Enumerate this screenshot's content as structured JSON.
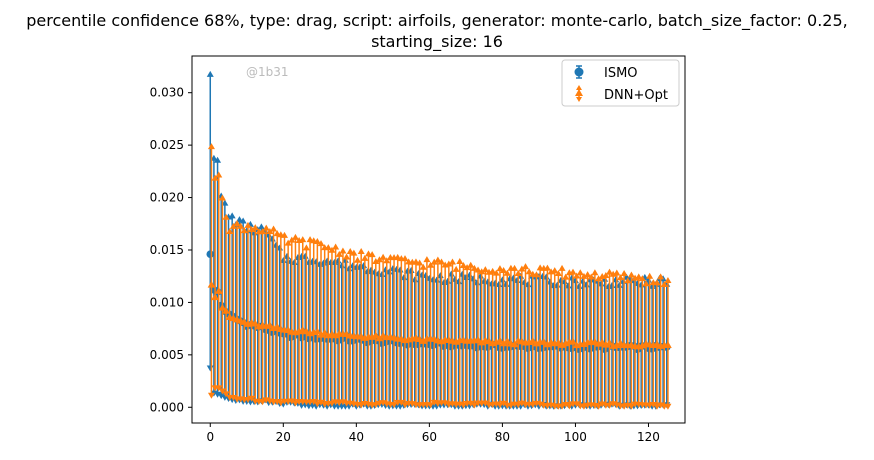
{
  "chart_data": {
    "type": "scatter",
    "title_line1": "percentile confidence 68%, type: drag, script: airfoils, generator: monte-carlo, batch_size_factor: 0.25,",
    "title_line2": "starting_size: 16",
    "watermark": "@1b31",
    "xlim": [
      -5,
      130
    ],
    "ylim": [
      -0.0015,
      0.0335
    ],
    "xticks": [
      0,
      20,
      40,
      60,
      80,
      100,
      120
    ],
    "yticks": [
      0.0,
      0.005,
      0.01,
      0.015,
      0.02,
      0.025,
      0.03
    ],
    "ytick_labels": [
      "0.000",
      "0.005",
      "0.010",
      "0.015",
      "0.020",
      "0.025",
      "0.030"
    ],
    "legend": {
      "position": "top-right",
      "entries": [
        "ISMO",
        "DNN+Opt"
      ]
    },
    "x": {
      "start": 0,
      "end": 125,
      "step": 1
    },
    "series": [
      {
        "name": "ISMO",
        "color": "#1f77b4",
        "marker": "circle",
        "mean_anchors": [
          [
            0,
            0.0146
          ],
          [
            1,
            0.0112
          ],
          [
            2,
            0.011
          ],
          [
            3,
            0.0097
          ],
          [
            5,
            0.0088
          ],
          [
            10,
            0.0079
          ],
          [
            15,
            0.0075
          ],
          [
            20,
            0.0069
          ],
          [
            30,
            0.0066
          ],
          [
            40,
            0.0064
          ],
          [
            50,
            0.0062
          ],
          [
            60,
            0.006
          ],
          [
            80,
            0.0058
          ],
          [
            100,
            0.0057
          ],
          [
            125,
            0.0057
          ]
        ],
        "upper_anchors": [
          [
            0,
            0.0318
          ],
          [
            1,
            0.0238
          ],
          [
            2,
            0.0236
          ],
          [
            3,
            0.0202
          ],
          [
            5,
            0.0183
          ],
          [
            10,
            0.0172
          ],
          [
            15,
            0.0168
          ],
          [
            20,
            0.0143
          ],
          [
            30,
            0.0141
          ],
          [
            40,
            0.0135
          ],
          [
            50,
            0.013
          ],
          [
            60,
            0.0124
          ],
          [
            80,
            0.0122
          ],
          [
            100,
            0.012
          ],
          [
            125,
            0.012
          ]
        ],
        "lower_anchors": [
          [
            0,
            0.0037
          ],
          [
            1,
            0.0013
          ],
          [
            2,
            0.0012
          ],
          [
            5,
            0.0008
          ],
          [
            10,
            0.0006
          ],
          [
            20,
            0.0004
          ],
          [
            30,
            0.0001
          ],
          [
            40,
            0.0001
          ],
          [
            60,
            0.0001
          ],
          [
            125,
            0.0001
          ]
        ]
      },
      {
        "name": "DNN+Opt",
        "color": "#ff7f0e",
        "marker": "triangle",
        "mean_anchors": [
          [
            0,
            0.0117
          ],
          [
            1,
            0.0105
          ],
          [
            2,
            0.0111
          ],
          [
            3,
            0.0095
          ],
          [
            5,
            0.0086
          ],
          [
            10,
            0.008
          ],
          [
            15,
            0.0077
          ],
          [
            20,
            0.0074
          ],
          [
            30,
            0.0071
          ],
          [
            40,
            0.0068
          ],
          [
            50,
            0.0066
          ],
          [
            60,
            0.0064
          ],
          [
            80,
            0.0062
          ],
          [
            100,
            0.0061
          ],
          [
            125,
            0.0059
          ]
        ],
        "upper_anchors": [
          [
            0,
            0.0249
          ],
          [
            1,
            0.0219
          ],
          [
            2,
            0.0222
          ],
          [
            3,
            0.02
          ],
          [
            5,
            0.0172
          ],
          [
            10,
            0.0173
          ],
          [
            15,
            0.017
          ],
          [
            20,
            0.016
          ],
          [
            30,
            0.0155
          ],
          [
            40,
            0.0145
          ],
          [
            50,
            0.014
          ],
          [
            60,
            0.0138
          ],
          [
            80,
            0.0132
          ],
          [
            100,
            0.0128
          ],
          [
            125,
            0.0121
          ]
        ],
        "lower_anchors": [
          [
            0,
            0.0011
          ],
          [
            1,
            0.0018
          ],
          [
            2,
            0.0018
          ],
          [
            5,
            0.0009
          ],
          [
            10,
            0.0007
          ],
          [
            20,
            0.0005
          ],
          [
            30,
            0.0004
          ],
          [
            40,
            0.0003
          ],
          [
            60,
            0.0003
          ],
          [
            125,
            0.0001
          ]
        ]
      }
    ]
  }
}
